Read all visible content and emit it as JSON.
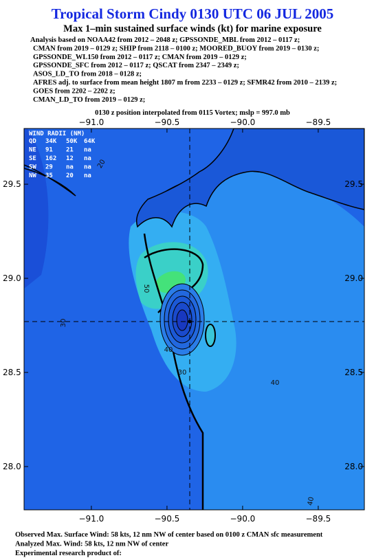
{
  "header": {
    "title": "Tropical Storm Cindy 0130 UTC 06 JUL 2005",
    "subtitle": "Max 1–min sustained surface winds (kt) for marine exposure",
    "analysis_lines": [
      "Analysis based on  NOAA42 from 2012 – 2048 z;  GPSSONDE_MBL from 2012 – 0117 z;",
      "CMAN from 2019 – 0129 z;  SHIP from 2118 – 0100 z;  MOORED_BUOY from 2019 – 0130 z;",
      "GPSSONDE_WL150 from 2012 – 0117 z;  CMAN from 2019 – 0129 z;",
      "GPSSONDE_SFC from 2012 – 0117 z;  QSCAT from 2347 – 2349 z;",
      "ASOS_LD_TO from 2018 – 0128 z;",
      "AFRES adj. to surface from mean height 1807 m from 2233 – 0129 z;  SFMR42 from 2010 – 2139 z;",
      "GOES from 2202 – 2202 z;",
      "CMAN_LD_TO from 2019 – 0129 z;"
    ],
    "position_note": "0130 z position interpolated from 0115 Vortex; mslp = 997.0 mb"
  },
  "map": {
    "xlim": [
      -91.445,
      -89.195
    ],
    "ylim": [
      27.77,
      29.796
    ],
    "xticks": [
      {
        "value": -91.0,
        "label": "−91.0"
      },
      {
        "value": -90.5,
        "label": "−90.5"
      },
      {
        "value": -90.0,
        "label": "−90.0"
      },
      {
        "value": -89.5,
        "label": "−89.5"
      }
    ],
    "yticks": [
      29.5,
      {
        "value": 29.0,
        "label": "29.0"
      },
      28.5,
      {
        "value": 28.0,
        "label": "28.0"
      }
    ],
    "center": {
      "lon": -90.35,
      "lat": 28.77
    },
    "wind_radii": {
      "title": "WIND RADII (NM)",
      "rows": [
        [
          "QD",
          "34K",
          "50K",
          "64K"
        ],
        [
          "NE",
          91,
          21,
          "na"
        ],
        [
          "SE",
          162,
          12,
          "na"
        ],
        [
          "SW",
          29,
          "na",
          "na"
        ],
        [
          "NW",
          35,
          20,
          "na"
        ]
      ]
    },
    "contour_labels": [
      "20",
      "30",
      "40",
      "50",
      "40",
      "30",
      "40"
    ]
  },
  "footer": [
    "Observed Max. Surface Wind: 58 kts, 12 nm NW of center based on 0100 z CMAN sfc measurement",
    "Analyzed Max. Wind: 58 kts, 12 nm NW of center",
    "Experimental research product of:"
  ]
}
